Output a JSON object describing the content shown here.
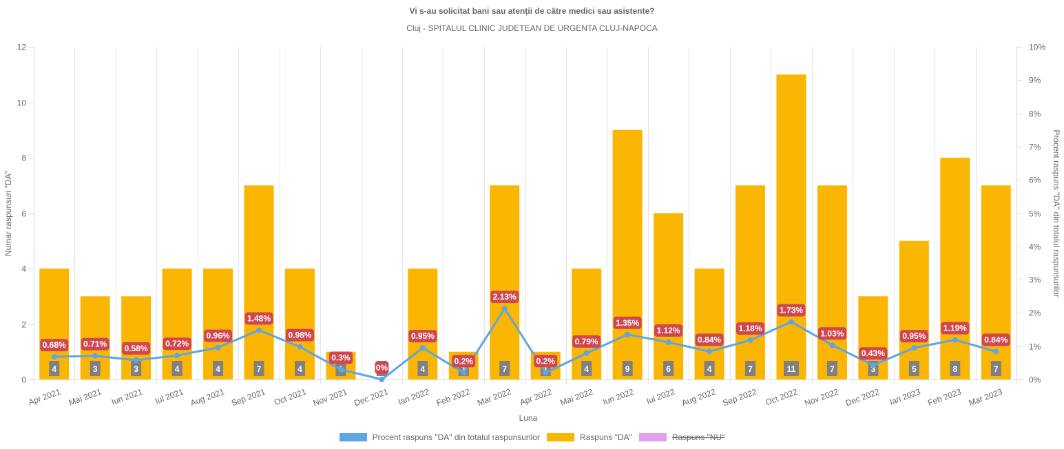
{
  "chart_data": {
    "type": "bar",
    "title": "Vi s-au solicitat bani sau atenții de către medici sau asistente?",
    "subtitle": "Cluj - SPITALUL CLINIC JUDETEAN  DE URGENTA CLUJ-NAPOCA",
    "xlabel": "Luna",
    "ylabel": "Numar raspunsuri \"DA\"",
    "y2label": "Procent raspuns \"DA\" din totalul raspunsurilor",
    "ylim": [
      0,
      12
    ],
    "y_ticks": [
      "0",
      "2",
      "4",
      "6",
      "8",
      "10",
      "12"
    ],
    "y2lim": [
      0,
      10
    ],
    "y2_ticks": [
      "0%",
      "1%",
      "2%",
      "3%",
      "4%",
      "5%",
      "6%",
      "7%",
      "8%",
      "9%",
      "10%"
    ],
    "grid": "vertical-only",
    "legend_position": "bottom",
    "categories": [
      "Apr 2021",
      "Mai 2021",
      "Iun 2021",
      "Iul 2021",
      "Aug 2021",
      "Sep 2021",
      "Oct 2021",
      "Nov 2021",
      "Dec 2021",
      "Ian 2022",
      "Feb 2022",
      "Mar 2022",
      "Apr 2022",
      "Mai 2022",
      "Iun 2022",
      "Iul 2022",
      "Aug 2022",
      "Sep 2022",
      "Oct 2022",
      "Nov 2022",
      "Dec 2022",
      "Ian 2023",
      "Feb 2023",
      "Mar 2023"
    ],
    "series": [
      {
        "name": "Procent raspuns \"DA\" din totalul raspunsurilor",
        "type": "line",
        "axis": "right",
        "color": "#5DA5E3",
        "values": [
          0.68,
          0.71,
          0.58,
          0.72,
          0.96,
          1.48,
          0.98,
          0.3,
          0,
          0.95,
          0.2,
          2.13,
          0.2,
          0.79,
          1.35,
          1.12,
          0.84,
          1.18,
          1.73,
          1.03,
          0.43,
          0.95,
          1.19,
          0.84
        ],
        "labels": [
          "0.68%",
          "0.71%",
          "0.58%",
          "0.72%",
          "0.96%",
          "1.48%",
          "0.98%",
          "0.3%",
          "0%",
          "0.95%",
          "0.2%",
          "2.13%",
          "0.2%",
          "0.79%",
          "1.35%",
          "1.12%",
          "0.84%",
          "1.18%",
          "1.73%",
          "1.03%",
          "0.43%",
          "0.95%",
          "1.19%",
          "0.84%"
        ],
        "label_color": "#D0474F"
      },
      {
        "name": "Raspuns \"DA\"",
        "type": "bar",
        "axis": "left",
        "color": "#FBB604",
        "values": [
          4,
          3,
          3,
          4,
          4,
          7,
          4,
          1,
          0,
          4,
          1,
          7,
          1,
          4,
          9,
          6,
          4,
          7,
          11,
          7,
          3,
          5,
          8,
          7
        ],
        "labels": [
          "4",
          "3",
          "3",
          "4",
          "4",
          "7",
          "4",
          "1",
          "0",
          "4",
          "1",
          "7",
          "1",
          "4",
          "9",
          "6",
          "4",
          "7",
          "11",
          "7",
          "3",
          "5",
          "8",
          "7"
        ],
        "label_color": "#808080"
      },
      {
        "name": "Raspuns \"NU\"",
        "type": "bar",
        "color": "#E2A1F0",
        "hidden": true,
        "values": []
      }
    ]
  },
  "legend": [
    {
      "label": "Procent raspuns \"DA\" din totalul raspunsurilor",
      "color": "#5DA5E3",
      "hidden": false
    },
    {
      "label": "Raspuns \"DA\"",
      "color": "#FBB604",
      "hidden": false
    },
    {
      "label": "Raspuns \"NU\"",
      "color": "#E2A1F0",
      "hidden": true
    }
  ]
}
